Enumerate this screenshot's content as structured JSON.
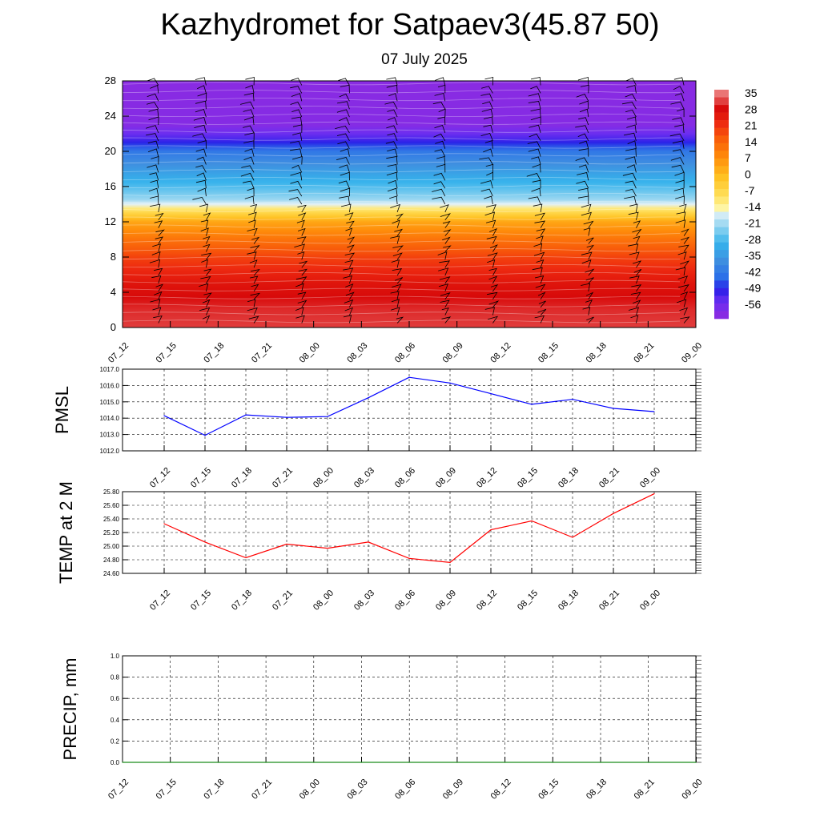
{
  "title": "Kazhydromet for Satpaev3(45.87 50)",
  "subtitle": "07 July 2025",
  "chart_data": [
    {
      "type": "heatmap",
      "y_ticks": [
        "0",
        "4",
        "8",
        "12",
        "16",
        "20",
        "24",
        "28"
      ],
      "ylim": [
        0,
        28
      ],
      "x_ticks": [
        "07_12",
        "07_15",
        "07_18",
        "07_21",
        "08_00",
        "08_03",
        "08_06",
        "08_09",
        "08_12",
        "08_15",
        "08_18",
        "08_21",
        "09_00"
      ],
      "colorbar_labels": [
        "35",
        "28",
        "21",
        "14",
        "7",
        "0",
        "-7",
        "-14",
        "-21",
        "-28",
        "-35",
        "-42",
        "-49",
        "-56"
      ],
      "profile": [
        {
          "level": 0,
          "value": 31
        },
        {
          "level": 2,
          "value": 30
        },
        {
          "level": 5,
          "value": 26
        },
        {
          "level": 8,
          "value": 19
        },
        {
          "level": 10,
          "value": 12
        },
        {
          "level": 12,
          "value": 4
        },
        {
          "level": 13.5,
          "value": -10
        },
        {
          "level": 14.5,
          "value": -20
        },
        {
          "level": 16,
          "value": -26
        },
        {
          "level": 18,
          "value": -33
        },
        {
          "level": 20,
          "value": -40
        },
        {
          "level": 21.5,
          "value": -50
        },
        {
          "level": 23,
          "value": -57
        },
        {
          "level": 28,
          "value": -58
        }
      ],
      "palette": [
        {
          "value": -58,
          "color": "#8a2be2"
        },
        {
          "value": -52,
          "color": "#6a2ef0"
        },
        {
          "value": -47,
          "color": "#2a1ee8"
        },
        {
          "value": -42,
          "color": "#2b6fe8"
        },
        {
          "value": -35,
          "color": "#3f8fe0"
        },
        {
          "value": -28,
          "color": "#35b2ec"
        },
        {
          "value": -21,
          "color": "#8fd3f0"
        },
        {
          "value": -15,
          "color": "#e2f1f7"
        },
        {
          "value": -13,
          "color": "#fff5a0"
        },
        {
          "value": -8,
          "color": "#ffe05a"
        },
        {
          "value": 0,
          "color": "#ffc020"
        },
        {
          "value": 8,
          "color": "#ff8c0a"
        },
        {
          "value": 16,
          "color": "#f85a0a"
        },
        {
          "value": 22,
          "color": "#ee2a10"
        },
        {
          "value": 28,
          "color": "#d80a0a"
        },
        {
          "value": 36,
          "color": "#ef8f8f"
        }
      ]
    },
    {
      "type": "line",
      "ylabel": "PMSL",
      "x": [
        "07_12",
        "07_15",
        "07_18",
        "07_21",
        "08_00",
        "08_03",
        "08_06",
        "08_09",
        "08_12",
        "08_15",
        "08_18",
        "08_21",
        "09_00"
      ],
      "y_ticks": [
        "1012.0",
        "1013.0",
        "1014.0",
        "1015.0",
        "1016.0",
        "1017.0"
      ],
      "ylim": [
        1012,
        1017
      ],
      "series": [
        {
          "values": [
            1014.15,
            1012.95,
            1014.2,
            1014.05,
            1014.1,
            1015.25,
            1016.5,
            1016.15,
            1015.5,
            1014.85,
            1015.15,
            1014.6,
            1014.4
          ],
          "color": "#0000ff"
        }
      ]
    },
    {
      "type": "line",
      "ylabel": "TEMP at 2 M",
      "x": [
        "07_12",
        "07_15",
        "07_18",
        "07_21",
        "08_00",
        "08_03",
        "08_06",
        "08_09",
        "08_12",
        "08_15",
        "08_18",
        "08_21",
        "09_00"
      ],
      "y_ticks": [
        "24.60",
        "24.80",
        "25.00",
        "25.20",
        "25.40",
        "25.60",
        "25.80"
      ],
      "ylim": [
        24.6,
        25.8
      ],
      "series": [
        {
          "values": [
            25.33,
            25.06,
            24.83,
            25.03,
            24.97,
            25.06,
            24.82,
            24.76,
            25.24,
            25.37,
            25.13,
            25.48,
            25.77
          ],
          "color": "#ff0000"
        }
      ]
    },
    {
      "type": "line",
      "ylabel": "PRECIP, mm",
      "x": [
        "07_12",
        "07_15",
        "07_18",
        "07_21",
        "08_00",
        "08_03",
        "08_06",
        "08_09",
        "08_12",
        "08_15",
        "08_18",
        "08_21",
        "09_00"
      ],
      "y_ticks": [
        "0.0",
        "0.2",
        "0.4",
        "0.6",
        "0.8",
        "1.0"
      ],
      "ylim": [
        0,
        1
      ],
      "series": [
        {
          "values": [
            0,
            0,
            0,
            0,
            0,
            0,
            0,
            0,
            0,
            0,
            0,
            0,
            0
          ],
          "color": "#1a8c1a"
        }
      ]
    }
  ]
}
